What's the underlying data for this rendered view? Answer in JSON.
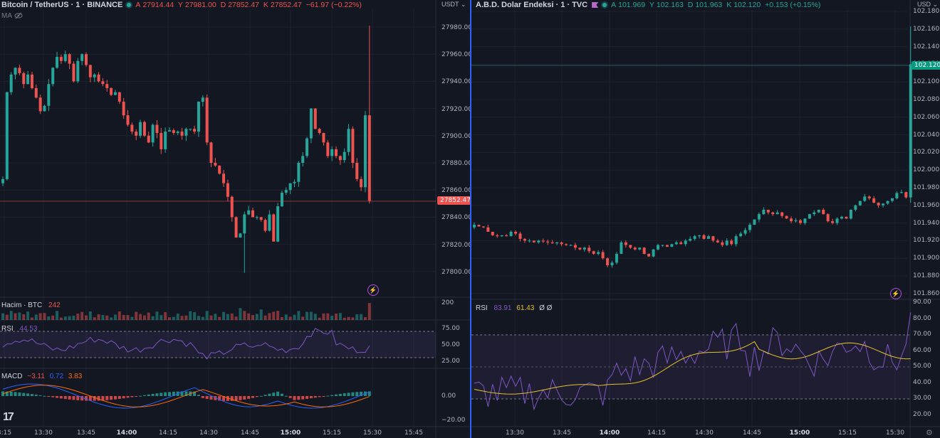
{
  "left_chart": {
    "symbol_title": "Bitcoin / TetherUS · 1 · BINANCE",
    "ohlc": {
      "o_label": "A",
      "o": "27914.44",
      "h_label": "Y",
      "h": "27981.00",
      "l_label": "D",
      "l": "27852.47",
      "c_label": "K",
      "c": "27852.47",
      "change": "−61.97 (−0.22%)"
    },
    "ma_label": "MA",
    "currency": "USDT",
    "price_axis": [
      "27980.00",
      "27960.00",
      "27940.00",
      "27920.00",
      "27900.00",
      "27880.00",
      "27860.00",
      "27840.00",
      "27820.00",
      "27800.00"
    ],
    "last_price": "27852.47",
    "volume_label": "Hacim · BTC",
    "volume_value": "242",
    "volume_axis": "200",
    "rsi_label": "RSI",
    "rsi_value": "44.53",
    "rsi_axis": [
      "75.00",
      "50.00",
      "25.00"
    ],
    "macd_label": "MACD",
    "macd_values": {
      "hist": "−3.11",
      "macd": "0.72",
      "signal": "3.83"
    },
    "macd_axis": [
      "0.00",
      "−20.00"
    ],
    "time_axis": [
      "3:15",
      "13:30",
      "13:45",
      "14:00",
      "14:15",
      "14:30",
      "14:45",
      "15:00",
      "15:15",
      "15:30",
      "15:45"
    ]
  },
  "right_chart": {
    "symbol_title": "A.B.D. Dolar Endeksi · 1 · TVC",
    "ohlc": {
      "o_label": "A",
      "o": "101.969",
      "h_label": "Y",
      "h": "102.163",
      "l_label": "D",
      "l": "101.963",
      "c_label": "K",
      "c": "102.120",
      "change": "+0.153 (+0.15%)"
    },
    "currency": "USD",
    "price_axis": [
      "102.180",
      "102.160",
      "102.140",
      "102.120",
      "102.100",
      "102.080",
      "102.060",
      "102.040",
      "102.020",
      "102.000",
      "101.980",
      "101.960",
      "101.940",
      "101.920",
      "101.900",
      "101.880",
      "101.860"
    ],
    "last_price": "102.120",
    "rsi_label": "RSI",
    "rsi_value": "83.91",
    "rsi_ma_value": "61.43",
    "rsi_extra": "Ø Ø",
    "rsi_axis": [
      "90.00",
      "80.00",
      "70.00",
      "60.00",
      "50.00",
      "40.00",
      "30.00",
      "20.00"
    ],
    "time_axis": [
      "13:30",
      "13:45",
      "14:00",
      "14:15",
      "14:30",
      "14:45",
      "15:00",
      "15:15",
      "15:30"
    ]
  },
  "colors": {
    "up": "#26a69a",
    "down": "#ef5350",
    "bg": "#131722",
    "rsi": "#7e57c2",
    "rsi_ma": "#e6c229",
    "divider": "#2962ff"
  },
  "icons": [
    "tradingview-logo-icon",
    "lightning-icon",
    "eye-hidden-icon",
    "flag-icon",
    "settings-gear-icon"
  ]
}
